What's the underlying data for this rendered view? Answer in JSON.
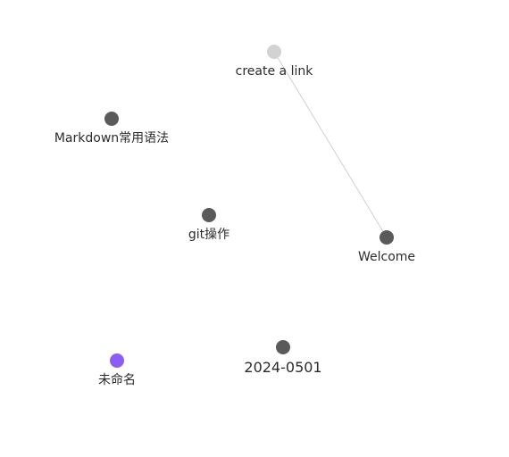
{
  "graph": {
    "nodes": [
      {
        "id": "create-a-link",
        "label": "create a link",
        "state": "dim",
        "color": "#d2d2d2"
      },
      {
        "id": "markdown",
        "label": "Markdown常用语法",
        "state": "normal",
        "color": "#5a5a5a"
      },
      {
        "id": "git",
        "label": "git操作",
        "state": "normal",
        "color": "#5a5a5a"
      },
      {
        "id": "welcome",
        "label": "Welcome",
        "state": "normal",
        "color": "#5a5a5a"
      },
      {
        "id": "2024-0501",
        "label": "2024-0501",
        "state": "normal",
        "color": "#5a5a5a"
      },
      {
        "id": "untitled",
        "label": "未命名",
        "state": "active",
        "color": "#8b5cf6"
      }
    ],
    "links": [
      {
        "source": "create-a-link",
        "target": "welcome",
        "color": "#cfcfcf"
      }
    ]
  }
}
